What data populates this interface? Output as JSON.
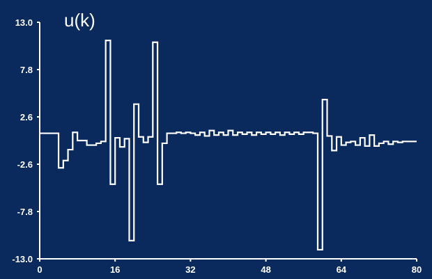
{
  "colors": {
    "background": "#0a2a5e",
    "foreground": "#ffffff"
  },
  "chart_data": {
    "type": "line",
    "title": "u(k)",
    "xlabel": "",
    "ylabel": "",
    "step": true,
    "xlim": [
      0,
      80
    ],
    "ylim": [
      -13.0,
      13.0
    ],
    "grid": false,
    "legend": "none",
    "x_ticks": [
      "0",
      "16",
      "32",
      "48",
      "64",
      "80"
    ],
    "x_tick_values": [
      0,
      16,
      32,
      48,
      64,
      80
    ],
    "y_ticks": [
      "13.0",
      "7.8",
      "2.6",
      "-2.6",
      "-7.8",
      "-13.0"
    ],
    "y_tick_values": [
      13.0,
      7.8,
      2.6,
      -2.6,
      -7.8,
      -13.0
    ],
    "series": [
      {
        "x": [
          0,
          1,
          2,
          3,
          4,
          5,
          6,
          7,
          8,
          9,
          10,
          11,
          12,
          13,
          14,
          15,
          16,
          17,
          18,
          19,
          20,
          21,
          22,
          23,
          24,
          25,
          26,
          27,
          28,
          29,
          30,
          31,
          32,
          33,
          34,
          35,
          36,
          37,
          38,
          39,
          40,
          41,
          42,
          43,
          44,
          45,
          46,
          47,
          48,
          49,
          50,
          51,
          52,
          53,
          54,
          55,
          56,
          57,
          58,
          59,
          60,
          61,
          62,
          63,
          64,
          65,
          66,
          67,
          68,
          69,
          70,
          71,
          72,
          73,
          74,
          75,
          76,
          77,
          78,
          79,
          80
        ],
        "y": [
          0.8,
          0.8,
          0.8,
          0.8,
          -3.0,
          -2.2,
          -1.0,
          0.9,
          0.0,
          0.0,
          -0.5,
          -0.5,
          -0.3,
          -0.1,
          11.0,
          -4.8,
          0.3,
          -0.7,
          0.2,
          -11.0,
          4.0,
          0.4,
          -0.2,
          0.4,
          10.8,
          -4.8,
          -0.3,
          0.8,
          0.8,
          0.9,
          0.8,
          0.9,
          0.8,
          0.6,
          0.9,
          0.5,
          1.1,
          0.6,
          0.9,
          0.6,
          1.1,
          0.6,
          0.9,
          0.7,
          0.9,
          0.6,
          0.9,
          0.7,
          0.9,
          0.7,
          0.9,
          0.6,
          0.9,
          0.7,
          0.9,
          0.7,
          0.9,
          0.9,
          0.8,
          -12.0,
          4.5,
          0.5,
          -1.1,
          0.4,
          -0.5,
          -0.2,
          -0.1,
          -0.5,
          0.3,
          -0.6,
          0.6,
          -0.6,
          -0.3,
          -0.1,
          -0.4,
          -0.1,
          -0.2,
          -0.1,
          -0.1,
          -0.1,
          -0.1
        ]
      }
    ]
  }
}
